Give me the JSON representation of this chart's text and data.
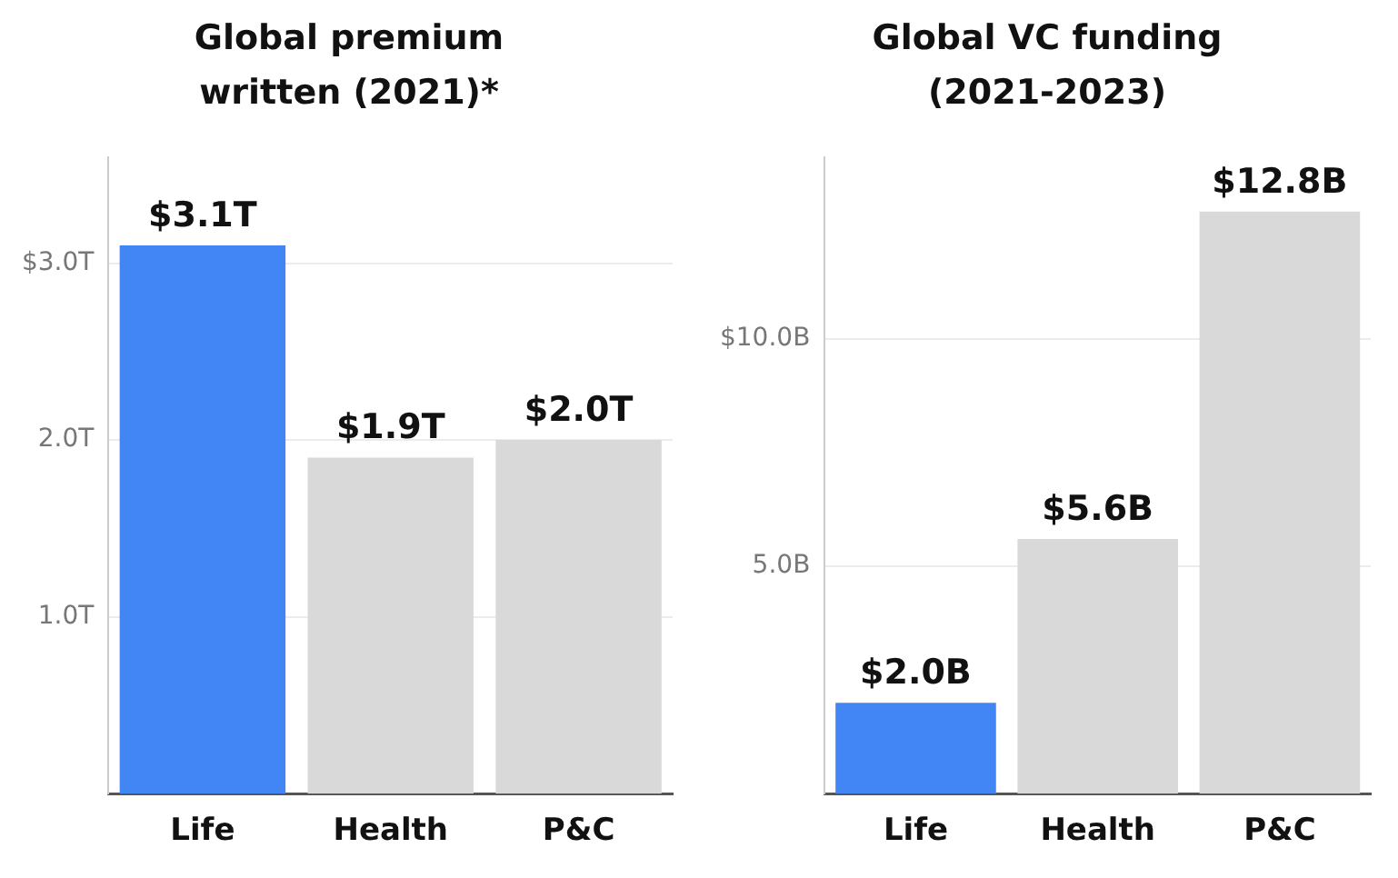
{
  "chart_data": [
    {
      "type": "bar",
      "title": "Global premium written (2021)*",
      "categories": [
        "Life",
        "Health",
        "P&C"
      ],
      "values": [
        3.1,
        1.9,
        2.0
      ],
      "colors": [
        "#4285f4",
        "#d9d9d9",
        "#d9d9d9"
      ],
      "ylim": [
        0,
        3.6
      ],
      "value_labels": [
        "$3.1T",
        "$1.9T",
        "$2.0T"
      ],
      "yticks": [
        {
          "value": 1,
          "label": "1.0T"
        },
        {
          "value": 2,
          "label": "2.0T"
        },
        {
          "value": 3,
          "label": "$3.0T"
        }
      ],
      "grid": "y"
    },
    {
      "type": "bar",
      "title": "Global VC funding (2021-2023)",
      "categories": [
        "Life",
        "Health",
        "P&C"
      ],
      "values": [
        2.0,
        5.6,
        12.8
      ],
      "colors": [
        "#4285f4",
        "#d9d9d9",
        "#d9d9d9"
      ],
      "ylim": [
        0,
        14
      ],
      "value_labels": [
        "$2.0B",
        "$5.6B",
        "$12.8B"
      ],
      "yticks": [
        {
          "value": 5,
          "label": "5.0B"
        },
        {
          "value": 10,
          "label": "$10.0B"
        }
      ],
      "grid": "y"
    }
  ]
}
